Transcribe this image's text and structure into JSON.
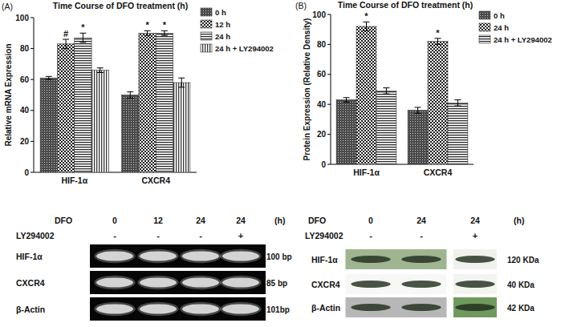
{
  "panel_labels": [
    "(A)",
    "(B)"
  ],
  "chart_data": [
    {
      "type": "bar",
      "title": "Time Course of DFO treatment (h)",
      "y_label": "Relative mRNA Expression",
      "categories": [
        "HIF-1α",
        "CXCR4"
      ],
      "series": [
        {
          "name": "0 h",
          "color": "#4a4a4a",
          "values": [
            61,
            50
          ],
          "errors": [
            1,
            2
          ],
          "annotations": [
            null,
            null
          ]
        },
        {
          "name": "12 h",
          "color": "#1a1a1a",
          "values": [
            83,
            90
          ],
          "errors": [
            3,
            1.5
          ],
          "annotations": [
            "#",
            "*"
          ]
        },
        {
          "name": "24 h",
          "color": "#2a2a2a",
          "values": [
            87,
            90
          ],
          "errors": [
            3,
            1.5
          ],
          "annotations": [
            "*",
            "*"
          ]
        },
        {
          "name": "24 h + LY294002",
          "color": "#3a3a3a",
          "values": [
            66,
            58
          ],
          "errors": [
            1.5,
            3
          ],
          "annotations": [
            null,
            null
          ]
        }
      ],
      "ylim": [
        0,
        100
      ],
      "yticks": [
        0,
        20,
        40,
        60,
        80,
        100
      ],
      "grid": false,
      "legend": "right"
    },
    {
      "type": "bar",
      "title": "Time Course of DFO treatment (h)",
      "y_label": "Protein Expression (Relative Density)",
      "categories": [
        "HIF-1α",
        "CXCR4"
      ],
      "series": [
        {
          "name": "0 h",
          "color": "#4a4a4a",
          "values": [
            43,
            36
          ],
          "errors": [
            1.5,
            2
          ],
          "annotations": [
            null,
            null
          ]
        },
        {
          "name": "24 h",
          "color": "#1a1a1a",
          "values": [
            92,
            82
          ],
          "errors": [
            3,
            2
          ],
          "annotations": [
            "*",
            "*"
          ]
        },
        {
          "name": "24 h + LY294002",
          "color": "#2a2a2a",
          "values": [
            49,
            41
          ],
          "errors": [
            2,
            2
          ],
          "annotations": [
            null,
            null
          ]
        }
      ],
      "ylim": [
        0,
        100
      ],
      "yticks": [
        0,
        20,
        40,
        60,
        80,
        100
      ],
      "grid": false,
      "legend": "right"
    }
  ],
  "gels": [
    {
      "header": "DFO",
      "lanes": [
        0,
        12,
        24,
        24
      ],
      "unit": "(h)",
      "treatment": "LY294002",
      "signs": [
        "-",
        "-",
        "-",
        "+"
      ],
      "rows": [
        {
          "label": "HIF-1α",
          "size": "100 bp"
        },
        {
          "label": "CXCR4",
          "size": "85 bp"
        },
        {
          "label": "β-Actin",
          "size": "101bp"
        }
      ]
    },
    {
      "header": "DFO",
      "lanes": [
        0,
        24,
        24
      ],
      "unit": "(h)",
      "treatment": "LY294002",
      "signs": [
        "-",
        "-",
        "+"
      ],
      "rows": [
        {
          "label": "HIF-1α",
          "size": "120 KDa"
        },
        {
          "label": "CXCR4",
          "size": "40 KDa"
        },
        {
          "label": "β-Actin",
          "size": "42 KDa"
        }
      ]
    }
  ]
}
